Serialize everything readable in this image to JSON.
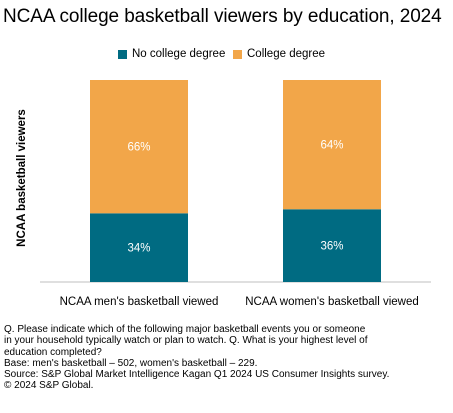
{
  "chart_data": {
    "type": "bar",
    "stacked": true,
    "title": "NCAA college basketball viewers by education, 2024",
    "ylabel": "NCAA basketball viewers",
    "xlabel": "",
    "categories": [
      "NCAA men's basketball viewed",
      "NCAA women's basketball viewed"
    ],
    "series": [
      {
        "name": "No college degree",
        "values": [
          34,
          36
        ],
        "labels": [
          "34%",
          "36%"
        ],
        "color": "#006b82"
      },
      {
        "name": "College degree",
        "values": [
          66,
          64
        ],
        "labels": [
          "66%",
          "64%"
        ],
        "color": "#f2a649"
      }
    ],
    "ylim": [
      0,
      100
    ],
    "grid": false,
    "legend_position": "top"
  },
  "notes": [
    "Q. Please indicate which of the following major basketball events you or someone",
    "in your household typically watch or plan to watch. Q. What is your highest level of",
    "education completed?",
    "Base: men's basketball – 502, women's basketball – 229.",
    "Source: S&P Global Market Intelligence Kagan Q1 2024 US Consumer Insights survey.",
    "© 2024 S&P Global."
  ]
}
